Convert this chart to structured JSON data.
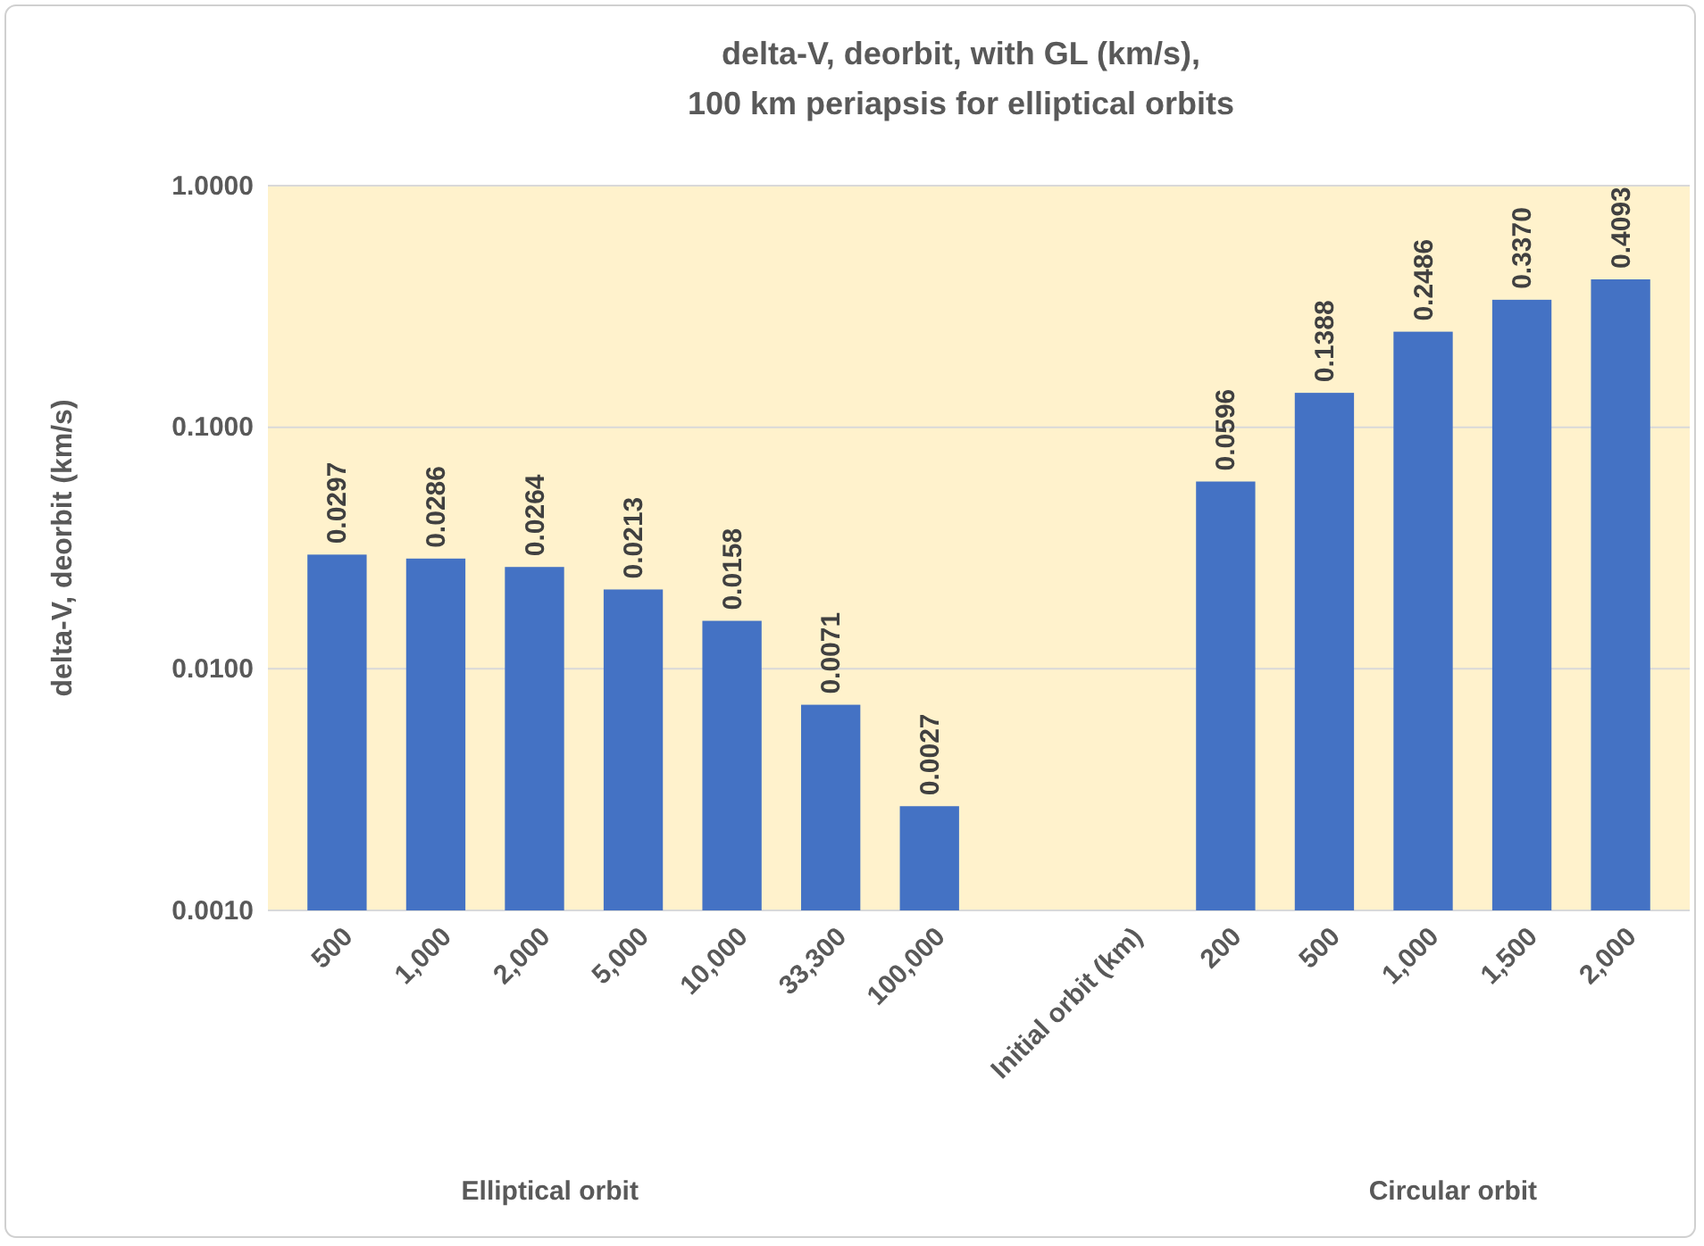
{
  "chart_data": {
    "type": "bar",
    "title": "delta-V, deorbit, with GL (km/s),\n100 km periapsis for elliptical orbits",
    "ylabel": "delta-V, deorbit (km/s)",
    "categories": [
      "500",
      "1,000",
      "2,000",
      "5,000",
      "10,000",
      "33,300",
      "100,000",
      null,
      "Initial orbit (km)",
      "200",
      "500",
      "1,000",
      "1,500",
      "2,000"
    ],
    "values": [
      0.0297,
      0.0286,
      0.0264,
      0.0213,
      0.0158,
      0.0071,
      0.0027,
      null,
      null,
      0.0596,
      0.1388,
      0.2486,
      0.337,
      0.4093
    ],
    "value_labels": [
      "0.0297",
      "0.0286",
      "0.0264",
      "0.0213",
      "0.0158",
      "0.0071",
      "0.0027",
      null,
      null,
      "0.0596",
      "0.1388",
      "0.2486",
      "0.3370",
      "0.4093"
    ],
    "color": "#4472c4",
    "log": true,
    "ylim": [
      0.001,
      1
    ],
    "yticks": [
      {
        "value": 0.001,
        "label": "0.0010"
      },
      {
        "value": 0.01,
        "label": "0.0100"
      },
      {
        "value": 0.1,
        "label": "0.1000"
      },
      {
        "value": 1,
        "label": "1.0000"
      }
    ],
    "grid": "y",
    "annotations": [
      "Elliptical orbit",
      "Circular orbit"
    ]
  }
}
